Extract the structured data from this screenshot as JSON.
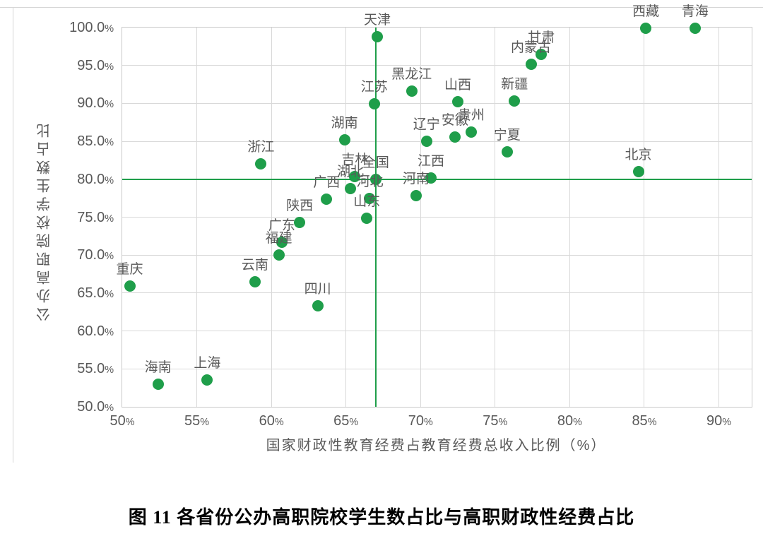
{
  "page": {
    "caption": "图 11 各省份公办高职院校学生数占比与高职财政性经费占比"
  },
  "chart_data": {
    "type": "scatter",
    "title": "",
    "xlabel": "国家财政性教育经费占教育经费总收入比例（%）",
    "ylabel": "公办高职院校学生数占比",
    "xlim": [
      50,
      92.2
    ],
    "ylim": [
      50,
      100
    ],
    "x_ticks": [
      "50%",
      "55%",
      "60%",
      "65%",
      "70%",
      "75%",
      "80%",
      "85%",
      "90%"
    ],
    "y_ticks": [
      "100.0%",
      "95.0%",
      "90.0%",
      "85.0%",
      "80.0%",
      "75.0%",
      "70.0%",
      "65.0%",
      "60.0%",
      "55.0%",
      "50.0%"
    ],
    "grid": true,
    "legend": "none",
    "reference_lines": {
      "vertical_x": 67.0,
      "horizontal_y": 80.0
    },
    "colors": {
      "marker": "#1f9e4a",
      "reference_line": "#1f9e4a",
      "grid": "#d9d9d9",
      "axis_text": "#595959"
    },
    "points": [
      {
        "label": "全国",
        "x": 67.0,
        "y": 80.0
      },
      {
        "label": "北京",
        "x": 84.6,
        "y": 81.0
      },
      {
        "label": "天津",
        "x": 67.1,
        "y": 98.8
      },
      {
        "label": "河北",
        "x": 66.6,
        "y": 77.5
      },
      {
        "label": "山西",
        "x": 72.5,
        "y": 90.2
      },
      {
        "label": "内蒙古",
        "x": 77.4,
        "y": 95.2
      },
      {
        "label": "辽宁",
        "x": 70.4,
        "y": 85.0
      },
      {
        "label": "吉林",
        "x": 65.6,
        "y": 80.4
      },
      {
        "label": "黑龙江",
        "x": 69.4,
        "y": 91.6
      },
      {
        "label": "上海",
        "x": 55.7,
        "y": 53.5
      },
      {
        "label": "江苏",
        "x": 66.9,
        "y": 89.9
      },
      {
        "label": "浙江",
        "x": 59.3,
        "y": 82.0
      },
      {
        "label": "安徽",
        "x": 72.3,
        "y": 85.6
      },
      {
        "label": "福建",
        "x": 60.5,
        "y": 70.0
      },
      {
        "label": "江西",
        "x": 70.7,
        "y": 80.2
      },
      {
        "label": "山东",
        "x": 66.4,
        "y": 74.9
      },
      {
        "label": "河南",
        "x": 69.7,
        "y": 77.8
      },
      {
        "label": "湖北",
        "x": 65.3,
        "y": 78.8
      },
      {
        "label": "湖南",
        "x": 64.9,
        "y": 85.2
      },
      {
        "label": "广东",
        "x": 60.7,
        "y": 71.7
      },
      {
        "label": "广西",
        "x": 63.7,
        "y": 77.4
      },
      {
        "label": "海南",
        "x": 52.4,
        "y": 53.0
      },
      {
        "label": "重庆",
        "x": 50.5,
        "y": 65.9
      },
      {
        "label": "四川",
        "x": 63.1,
        "y": 63.3
      },
      {
        "label": "贵州",
        "x": 73.4,
        "y": 86.2
      },
      {
        "label": "云南",
        "x": 58.9,
        "y": 66.5
      },
      {
        "label": "西藏",
        "x": 85.1,
        "y": 99.9
      },
      {
        "label": "陕西",
        "x": 61.9,
        "y": 74.3
      },
      {
        "label": "甘肃",
        "x": 78.1,
        "y": 96.5
      },
      {
        "label": "青海",
        "x": 88.4,
        "y": 99.9
      },
      {
        "label": "宁夏",
        "x": 75.8,
        "y": 83.6
      },
      {
        "label": "新疆",
        "x": 76.3,
        "y": 90.3
      }
    ]
  }
}
